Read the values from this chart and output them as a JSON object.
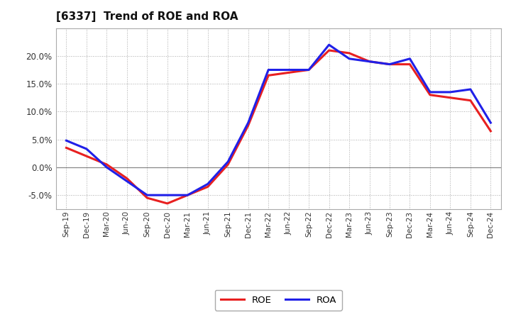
{
  "title": "[6337]  Trend of ROE and ROA",
  "x_labels": [
    "Sep-19",
    "Dec-19",
    "Mar-20",
    "Jun-20",
    "Sep-20",
    "Dec-20",
    "Mar-21",
    "Jun-21",
    "Sep-21",
    "Dec-21",
    "Mar-22",
    "Jun-22",
    "Sep-22",
    "Dec-22",
    "Mar-23",
    "Jun-23",
    "Sep-23",
    "Dec-23",
    "Mar-24",
    "Jun-24",
    "Sep-24",
    "Dec-24"
  ],
  "roe": [
    3.5,
    2.0,
    0.5,
    -2.0,
    -5.5,
    -6.5,
    -5.0,
    -3.5,
    0.5,
    7.5,
    16.5,
    17.0,
    17.5,
    21.0,
    20.5,
    19.0,
    18.5,
    18.5,
    13.0,
    12.5,
    12.0,
    6.5
  ],
  "roa": [
    4.8,
    3.3,
    0.0,
    -2.5,
    -5.0,
    -5.0,
    -5.0,
    -3.0,
    1.0,
    8.0,
    17.5,
    17.5,
    17.5,
    22.0,
    19.5,
    19.0,
    18.5,
    19.5,
    13.5,
    13.5,
    14.0,
    8.0
  ],
  "roe_color": "#e82020",
  "roa_color": "#2020e8",
  "background_color": "#ffffff",
  "plot_bg_color": "#ffffff",
  "grid_color": "#aaaaaa",
  "ylim": [
    -7.5,
    25.0
  ],
  "yticks": [
    -5.0,
    0.0,
    5.0,
    10.0,
    15.0,
    20.0
  ],
  "line_width": 2.2
}
